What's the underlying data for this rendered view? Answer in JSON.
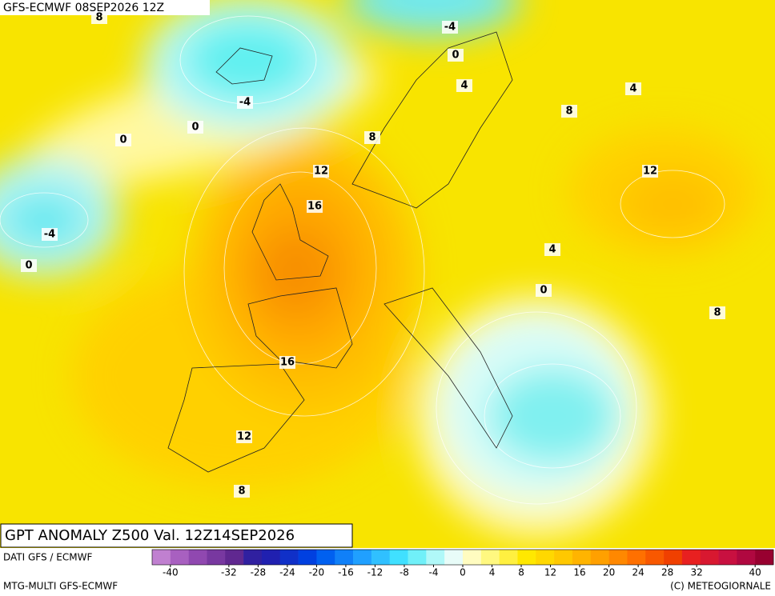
{
  "header": {
    "run": "GFS-ECMWF 08SEP2026 12Z",
    "title": "GPT ANOMALY Z500 Val. 12Z14SEP2026"
  },
  "contour_labels": [
    8,
    -4,
    0,
    4,
    -4,
    0,
    0,
    8,
    8,
    4,
    12,
    12,
    16,
    -4,
    0,
    4,
    0,
    8,
    16,
    12,
    8
  ],
  "colorbar": {
    "range": [
      -42.5,
      42.5
    ],
    "colors": [
      "#c080d0",
      "#a860c0",
      "#9048b0",
      "#7838a0",
      "#602890",
      "#3020a0",
      "#2020b0",
      "#1030c8",
      "#0040e0",
      "#0060f0",
      "#1080f8",
      "#20a0ff",
      "#30c0ff",
      "#40e0ff",
      "#70f0f8",
      "#b0f8f8",
      "#e8fcf8",
      "#fffcc0",
      "#fff880",
      "#fff040",
      "#ffe800",
      "#ffd800",
      "#ffc800",
      "#ffb400",
      "#ffa000",
      "#ff8800",
      "#ff7000",
      "#f85800",
      "#f04000",
      "#e82020",
      "#d81830",
      "#c81040",
      "#b00840",
      "#980030"
    ],
    "ticks": [
      -40,
      -32,
      -28,
      -24,
      -20,
      -16,
      -12,
      -8,
      -4,
      0,
      4,
      8,
      12,
      16,
      20,
      24,
      28,
      32,
      40
    ]
  },
  "footer": {
    "source": "DATI GFS / ECMWF",
    "model": "MTG-MULTI GFS-ECMWF",
    "copyright": "(C) METEOGIORNALE"
  }
}
